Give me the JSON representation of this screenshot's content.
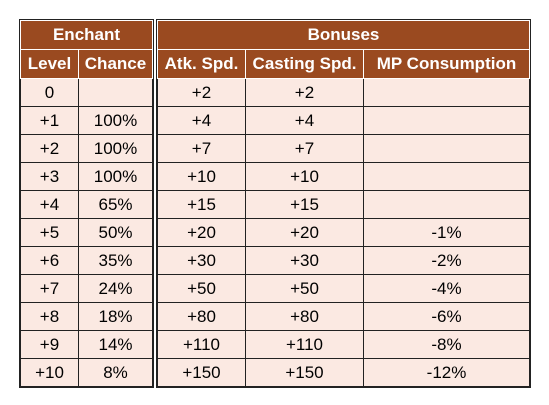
{
  "enchant": {
    "title": "Enchant",
    "columns": [
      "Level",
      "Chance"
    ],
    "rows": [
      [
        "0",
        ""
      ],
      [
        "+1",
        "100%"
      ],
      [
        "+2",
        "100%"
      ],
      [
        "+3",
        "100%"
      ],
      [
        "+4",
        "65%"
      ],
      [
        "+5",
        "50%"
      ],
      [
        "+6",
        "35%"
      ],
      [
        "+7",
        "24%"
      ],
      [
        "+8",
        "18%"
      ],
      [
        "+9",
        "14%"
      ],
      [
        "+10",
        "8%"
      ]
    ]
  },
  "bonuses": {
    "title": "Bonuses",
    "columns": [
      "Atk. Spd.",
      "Casting Spd.",
      "MP Consumption"
    ],
    "rows": [
      [
        "+2",
        "+2",
        ""
      ],
      [
        "+4",
        "+4",
        ""
      ],
      [
        "+7",
        "+7",
        ""
      ],
      [
        "+10",
        "+10",
        ""
      ],
      [
        "+15",
        "+15",
        ""
      ],
      [
        "+20",
        "+20",
        "-1%"
      ],
      [
        "+30",
        "+30",
        "-2%"
      ],
      [
        "+50",
        "+50",
        "-4%"
      ],
      [
        "+80",
        "+80",
        "-6%"
      ],
      [
        "+110",
        "+110",
        "-8%"
      ],
      [
        "+150",
        "+150",
        "-12%"
      ]
    ]
  },
  "colors": {
    "header_bg": "#9a4a20",
    "cell_bg": "#fbe9e2"
  }
}
